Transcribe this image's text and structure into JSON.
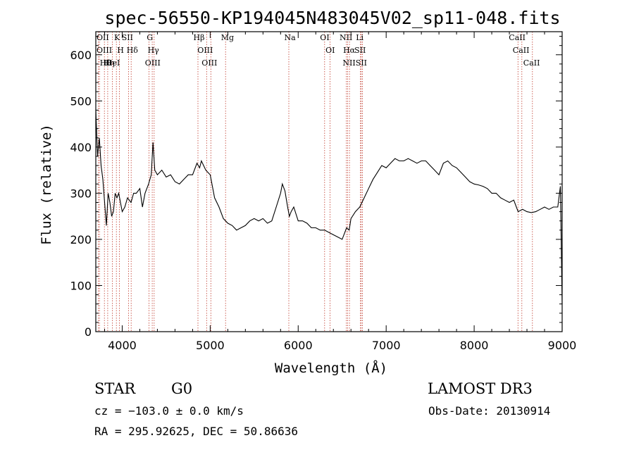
{
  "chart_data": {
    "type": "line",
    "title": "spec-56550-KP194045N483045V02_sp11-048.fits",
    "xlabel": "Wavelength (Å)",
    "ylabel": "Flux (relative)",
    "xlim": [
      3700,
      9000
    ],
    "ylim": [
      0,
      650
    ],
    "x_ticks": [
      "4000",
      "5000",
      "6000",
      "7000",
      "8000",
      "9000"
    ],
    "y_ticks": [
      "0",
      "100",
      "200",
      "300",
      "400",
      "500",
      "600"
    ],
    "grid": false,
    "series": [
      {
        "x": [
          3700,
          3720,
          3740,
          3760,
          3780,
          3800,
          3820,
          3840,
          3860,
          3880,
          3900,
          3920,
          3940,
          3960,
          3980,
          4000,
          4030,
          4060,
          4100,
          4130,
          4160,
          4200,
          4230,
          4260,
          4300,
          4330,
          4350,
          4370,
          4400,
          4450,
          4500,
          4550,
          4600,
          4650,
          4700,
          4750,
          4800,
          4850,
          4880,
          4900,
          4950,
          5000,
          5050,
          5100,
          5150,
          5200,
          5250,
          5300,
          5350,
          5400,
          5450,
          5500,
          5550,
          5600,
          5650,
          5700,
          5750,
          5800,
          5820,
          5850,
          5880,
          5900,
          5920,
          5950,
          6000,
          6050,
          6100,
          6150,
          6200,
          6250,
          6300,
          6350,
          6400,
          6450,
          6500,
          6520,
          6550,
          6580,
          6600,
          6650,
          6700,
          6750,
          6800,
          6850,
          6900,
          6950,
          7000,
          7050,
          7100,
          7150,
          7200,
          7250,
          7300,
          7350,
          7400,
          7450,
          7500,
          7550,
          7600,
          7650,
          7700,
          7750,
          7800,
          7850,
          7900,
          7950,
          8000,
          8050,
          8100,
          8150,
          8200,
          8250,
          8300,
          8350,
          8400,
          8450,
          8500,
          8550,
          8600,
          8650,
          8700,
          8750,
          8800,
          8850,
          8900,
          8950,
          8980,
          9000
        ],
        "y": [
          480,
          380,
          420,
          360,
          330,
          280,
          230,
          300,
          280,
          250,
          260,
          300,
          290,
          300,
          280,
          260,
          270,
          290,
          280,
          300,
          300,
          310,
          270,
          300,
          320,
          340,
          410,
          350,
          340,
          350,
          335,
          340,
          325,
          320,
          330,
          340,
          340,
          365,
          355,
          370,
          350,
          340,
          290,
          270,
          245,
          235,
          230,
          220,
          225,
          230,
          240,
          245,
          240,
          245,
          235,
          240,
          270,
          300,
          320,
          305,
          270,
          250,
          260,
          270,
          240,
          240,
          235,
          225,
          225,
          220,
          220,
          215,
          210,
          205,
          200,
          210,
          225,
          220,
          245,
          260,
          270,
          290,
          310,
          330,
          345,
          360,
          355,
          365,
          375,
          370,
          370,
          375,
          370,
          365,
          370,
          370,
          360,
          350,
          340,
          365,
          370,
          360,
          355,
          345,
          335,
          325,
          320,
          318,
          315,
          310,
          300,
          300,
          290,
          285,
          280,
          285,
          260,
          265,
          260,
          258,
          260,
          265,
          270,
          265,
          270,
          270,
          315,
          60
        ]
      }
    ],
    "line_markers": [
      {
        "label": "Hθ",
        "wavelength": 3798
      },
      {
        "label": "OII",
        "wavelength": 3727
      },
      {
        "label": "OIII",
        "wavelength": 3742
      },
      {
        "label": "K",
        "wavelength": 3934
      },
      {
        "label": "HeI",
        "wavelength": 3889
      },
      {
        "label": "Hη",
        "wavelength": 3835
      },
      {
        "label": "H",
        "wavelength": 3968
      },
      {
        "label": "Hδ",
        "wavelength": 4102
      },
      {
        "label": "SII",
        "wavelength": 4072
      },
      {
        "label": "OIII",
        "wavelength": 4363
      },
      {
        "label": "Hγ",
        "wavelength": 4341
      },
      {
        "label": "G",
        "wavelength": 4305
      },
      {
        "label": "OIII",
        "wavelength": 5007
      },
      {
        "label": "OIII",
        "wavelength": 4959
      },
      {
        "label": "Hβ",
        "wavelength": 4861
      },
      {
        "label": "Mg",
        "wavelength": 5175
      },
      {
        "label": "Na",
        "wavelength": 5894
      },
      {
        "label": "OI",
        "wavelength": 6300
      },
      {
        "label": "OI",
        "wavelength": 6363
      },
      {
        "label": "Hα",
        "wavelength": 6563
      },
      {
        "label": "SII",
        "wavelength": 6717
      },
      {
        "label": "NII",
        "wavelength": 6548
      },
      {
        "label": "Li",
        "wavelength": 6708
      },
      {
        "label": "NII",
        "wavelength": 6583
      },
      {
        "label": "SII",
        "wavelength": 6731
      },
      {
        "label": "CaII",
        "wavelength": 8542
      },
      {
        "label": "CaII",
        "wavelength": 8498
      },
      {
        "label": "CaII",
        "wavelength": 8662
      }
    ],
    "colors": {
      "spectrum": "#000000",
      "marker_lines": "#c0392b",
      "axes": "#000000"
    }
  },
  "footer": {
    "object_class": "STAR",
    "subclass": "G0",
    "survey": "LAMOST DR3",
    "redshift_text": "cz = −103.0 ± 0.0 km/s",
    "obs_date_text": "Obs-Date: 20130914",
    "coords_text": "RA = 295.92625, DEC =  50.86636"
  }
}
